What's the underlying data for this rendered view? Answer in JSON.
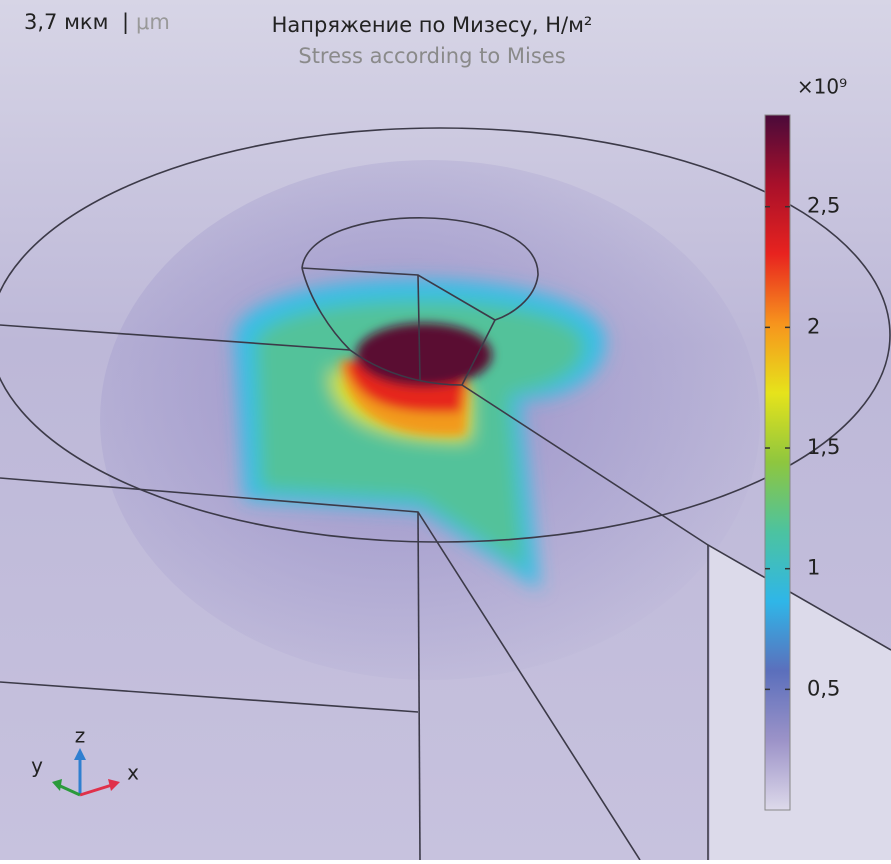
{
  "header": {
    "scale": "3,7 мкм",
    "separator": "|",
    "scale_unit": "μm",
    "title": "Напряжение по Мизесу, Н/м²",
    "subtitle": "Stress according to Mises"
  },
  "colorbar": {
    "multiplier": "×10⁹",
    "lim": [
      0,
      2.88
    ],
    "ticks": [
      {
        "value": 0.5,
        "label": "0,5"
      },
      {
        "value": 1,
        "label": "1"
      },
      {
        "value": 1.5,
        "label": "1,5"
      },
      {
        "value": 2,
        "label": "2"
      },
      {
        "value": 2.5,
        "label": "2,5"
      }
    ],
    "colors": [
      "#ddd9ea",
      "#9c93c8",
      "#5b6fbc",
      "#2fb6e8",
      "#4cc3a0",
      "#8ec63f",
      "#e6e31b",
      "#f7941d",
      "#e8231f",
      "#a8102a",
      "#4a0a3a"
    ]
  },
  "triad": {
    "z": "z",
    "y": "y",
    "x": "x"
  }
}
